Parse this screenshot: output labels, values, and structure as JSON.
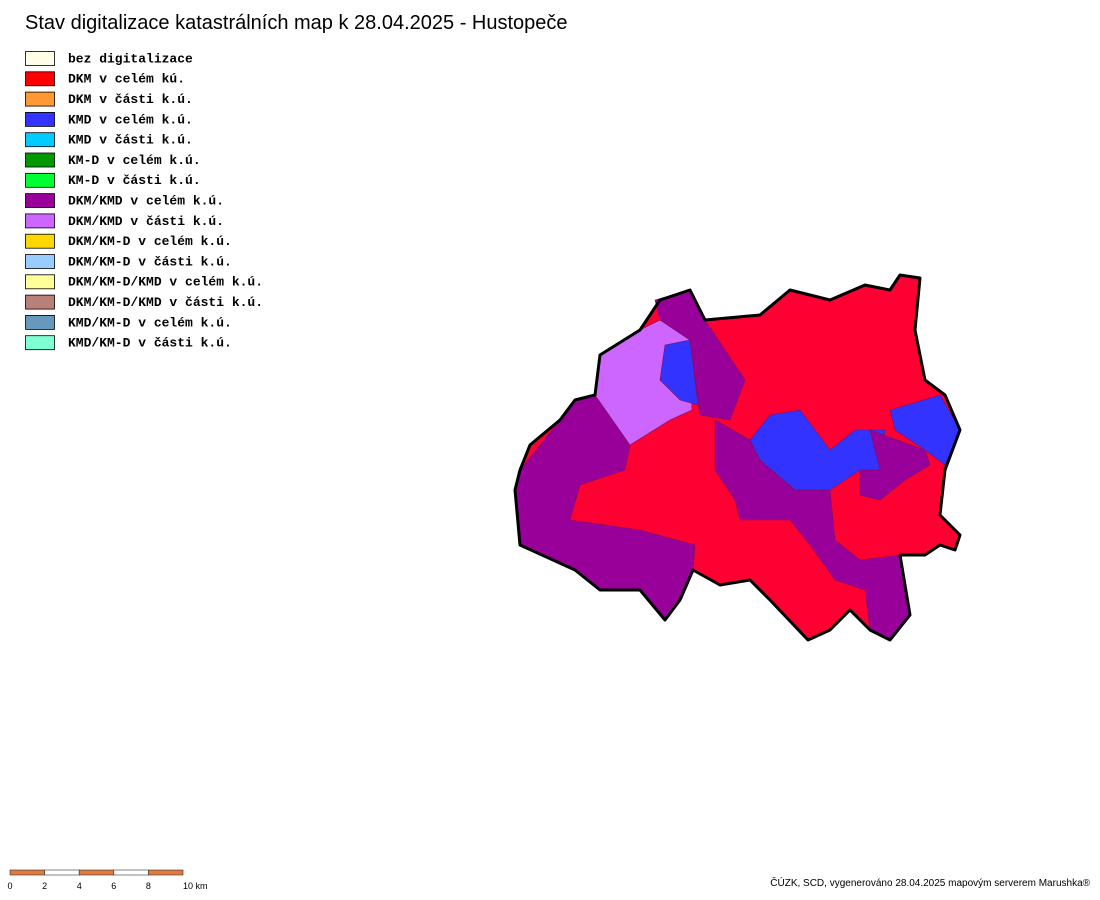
{
  "title": "Stav digitalizace katastrálních map k 28.04.2025 - Hustopeče",
  "legend": [
    {
      "label": "bez digitalizace",
      "color": "#ffffe8"
    },
    {
      "label": "DKM v celém kú.",
      "color": "#ff0000"
    },
    {
      "label": "DKM v části k.ú.",
      "color": "#ff9933"
    },
    {
      "label": "KMD v celém k.ú.",
      "color": "#3333ff"
    },
    {
      "label": "KMD v části k.ú.",
      "color": "#00ccff"
    },
    {
      "label": "KM-D v celém k.ú.",
      "color": "#009900"
    },
    {
      "label": "KM-D v části k.ú.",
      "color": "#00ff33"
    },
    {
      "label": "DKM/KMD v celém k.ú.",
      "color": "#990099"
    },
    {
      "label": "DKM/KMD v části k.ú.",
      "color": "#cc66ff"
    },
    {
      "label": "DKM/KM-D v celém k.ú.",
      "color": "#ffd700"
    },
    {
      "label": "DKM/KM-D v části k.ú.",
      "color": "#99ccff"
    },
    {
      "label": "DKM/KM-D/KMD v celém k.ú.",
      "color": "#ffff99"
    },
    {
      "label": "DKM/KM-D/KMD v části k.ú.",
      "color": "#b88078"
    },
    {
      "label": "KMD/KM-D v celém k.ú.",
      "color": "#6699bb"
    },
    {
      "label": "KMD/KM-D v části k.ú.",
      "color": "#80ffd4"
    }
  ],
  "scale_bar": [
    "0",
    "2",
    "4",
    "6",
    "8",
    "10 km"
  ],
  "credit": "ČÚZK, SCD, vygenerováno 28.04.2025 mapovým serverem Marushka®"
}
